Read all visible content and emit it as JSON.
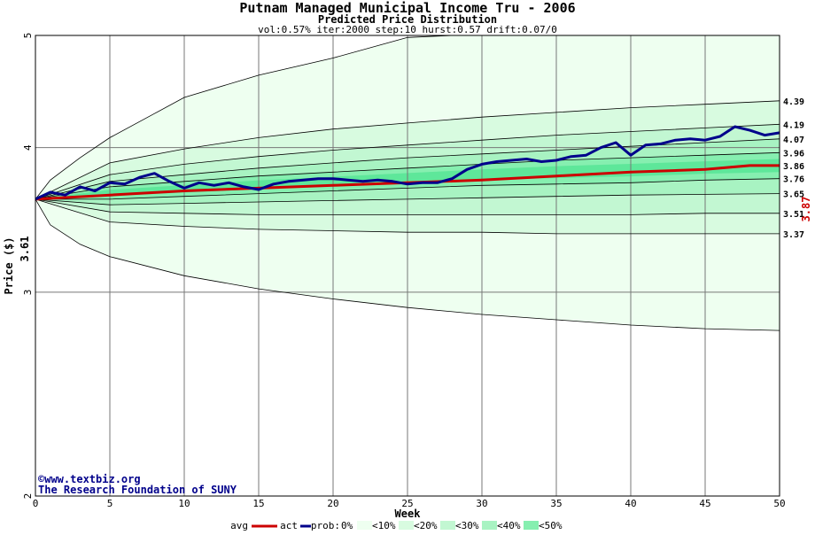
{
  "title": "Putnam Managed Municipal Income Tru - 2006",
  "subtitle": "Predicted Price Distribution",
  "params": "vol:0.57% iter:2000 step:10 hurst:0.57 drift:0.07/0",
  "ylabel": "Price ($)",
  "xlabel": "Week",
  "start_price_label": "3.61",
  "end_price_label": "3.87",
  "copyright_line1": "©www.textbiz.org",
  "copyright_line2": "The Research Foundation of SUNY",
  "colors": {
    "avg": "#cc0000",
    "actual": "#00008b",
    "band_outer": "#eefff0",
    "band_10": "#d8fbe0",
    "band_20": "#c2f7d2",
    "band_30": "#a8f3c2",
    "band_40": "#86efb0",
    "band_50": "#5ee79a"
  },
  "legend": {
    "avg": "avg",
    "act": "act",
    "prob": "prob:",
    "p0": "0%",
    "p10": "<10%",
    "p20": "<20%",
    "p30": "<30%",
    "p40": "<40%",
    "p50": "<50%"
  },
  "chart_data": {
    "type": "line",
    "yscale": "log",
    "xlim": [
      0,
      50
    ],
    "ylim": [
      2,
      5
    ],
    "x_ticks": [
      0,
      5,
      10,
      15,
      20,
      25,
      30,
      35,
      40,
      45,
      50
    ],
    "y_ticks": [
      2,
      3,
      4,
      5
    ],
    "right_labels": [
      "4.39",
      "4.19",
      "4.07",
      "3.96",
      "3.86",
      "3.76",
      "3.65",
      "3.51",
      "3.37"
    ],
    "bands": [
      {
        "name": "outer",
        "upper": [
          [
            0,
            3.61
          ],
          [
            1,
            3.75
          ],
          [
            3,
            3.92
          ],
          [
            5,
            4.08
          ],
          [
            8,
            4.28
          ],
          [
            10,
            4.42
          ],
          [
            15,
            4.62
          ],
          [
            20,
            4.78
          ],
          [
            25,
            4.98
          ],
          [
            28,
            5.05
          ]
        ],
        "lower": [
          [
            0,
            3.61
          ],
          [
            1,
            3.43
          ],
          [
            3,
            3.3
          ],
          [
            5,
            3.22
          ],
          [
            10,
            3.1
          ],
          [
            15,
            3.02
          ],
          [
            20,
            2.96
          ],
          [
            25,
            2.91
          ],
          [
            30,
            2.87
          ],
          [
            35,
            2.84
          ],
          [
            40,
            2.81
          ],
          [
            45,
            2.79
          ],
          [
            50,
            2.78
          ]
        ]
      },
      {
        "name": "p10",
        "upper": [
          [
            0,
            3.61
          ],
          [
            5,
            3.88
          ],
          [
            10,
            3.99
          ],
          [
            15,
            4.08
          ],
          [
            20,
            4.15
          ],
          [
            25,
            4.2
          ],
          [
            30,
            4.25
          ],
          [
            35,
            4.29
          ],
          [
            40,
            4.33
          ],
          [
            45,
            4.36
          ],
          [
            50,
            4.39
          ]
        ],
        "lower": [
          [
            0,
            3.61
          ],
          [
            5,
            3.45
          ],
          [
            10,
            3.42
          ],
          [
            15,
            3.4
          ],
          [
            20,
            3.39
          ],
          [
            25,
            3.38
          ],
          [
            30,
            3.38
          ],
          [
            35,
            3.37
          ],
          [
            40,
            3.37
          ],
          [
            45,
            3.37
          ],
          [
            50,
            3.37
          ]
        ]
      },
      {
        "name": "p20",
        "upper": [
          [
            0,
            3.61
          ],
          [
            5,
            3.79
          ],
          [
            10,
            3.87
          ],
          [
            15,
            3.93
          ],
          [
            20,
            3.98
          ],
          [
            25,
            4.02
          ],
          [
            30,
            4.06
          ],
          [
            35,
            4.1
          ],
          [
            40,
            4.13
          ],
          [
            45,
            4.16
          ],
          [
            50,
            4.19
          ]
        ],
        "lower": [
          [
            0,
            3.61
          ],
          [
            5,
            3.52
          ],
          [
            10,
            3.51
          ],
          [
            15,
            3.5
          ],
          [
            20,
            3.5
          ],
          [
            25,
            3.5
          ],
          [
            30,
            3.5
          ],
          [
            35,
            3.5
          ],
          [
            40,
            3.5
          ],
          [
            45,
            3.51
          ],
          [
            50,
            3.51
          ]
        ]
      },
      {
        "name": "p30",
        "upper": [
          [
            0,
            3.61
          ],
          [
            5,
            3.74
          ],
          [
            10,
            3.79
          ],
          [
            15,
            3.84
          ],
          [
            20,
            3.88
          ],
          [
            25,
            3.92
          ],
          [
            30,
            3.95
          ],
          [
            35,
            3.98
          ],
          [
            40,
            4.01
          ],
          [
            45,
            4.04
          ],
          [
            50,
            4.07
          ]
        ],
        "lower": [
          [
            0,
            3.61
          ],
          [
            5,
            3.57
          ],
          [
            10,
            3.58
          ],
          [
            15,
            3.59
          ],
          [
            20,
            3.6
          ],
          [
            25,
            3.61
          ],
          [
            30,
            3.62
          ],
          [
            35,
            3.63
          ],
          [
            40,
            3.64
          ],
          [
            45,
            3.645
          ],
          [
            50,
            3.65
          ]
        ]
      },
      {
        "name": "p40",
        "upper": [
          [
            0,
            3.61
          ],
          [
            5,
            3.7
          ],
          [
            10,
            3.74
          ],
          [
            15,
            3.78
          ],
          [
            20,
            3.81
          ],
          [
            25,
            3.84
          ],
          [
            30,
            3.87
          ],
          [
            35,
            3.9
          ],
          [
            40,
            3.92
          ],
          [
            45,
            3.94
          ],
          [
            50,
            3.96
          ]
        ],
        "lower": [
          [
            0,
            3.61
          ],
          [
            5,
            3.61
          ],
          [
            10,
            3.63
          ],
          [
            15,
            3.65
          ],
          [
            20,
            3.67
          ],
          [
            25,
            3.69
          ],
          [
            30,
            3.71
          ],
          [
            35,
            3.72
          ],
          [
            40,
            3.73
          ],
          [
            45,
            3.75
          ],
          [
            50,
            3.76
          ]
        ]
      }
    ],
    "series": [
      {
        "name": "avg",
        "points": [
          [
            0,
            3.61
          ],
          [
            5,
            3.64
          ],
          [
            10,
            3.67
          ],
          [
            15,
            3.69
          ],
          [
            20,
            3.71
          ],
          [
            25,
            3.73
          ],
          [
            30,
            3.75
          ],
          [
            35,
            3.78
          ],
          [
            40,
            3.81
          ],
          [
            45,
            3.83
          ],
          [
            48,
            3.86
          ],
          [
            50,
            3.86
          ]
        ]
      },
      {
        "name": "act",
        "points": [
          [
            0,
            3.61
          ],
          [
            1,
            3.66
          ],
          [
            2,
            3.64
          ],
          [
            3,
            3.7
          ],
          [
            4,
            3.67
          ],
          [
            5,
            3.73
          ],
          [
            6,
            3.72
          ],
          [
            7,
            3.77
          ],
          [
            8,
            3.8
          ],
          [
            9,
            3.74
          ],
          [
            10,
            3.69
          ],
          [
            11,
            3.73
          ],
          [
            12,
            3.71
          ],
          [
            13,
            3.73
          ],
          [
            14,
            3.7
          ],
          [
            15,
            3.68
          ],
          [
            16,
            3.72
          ],
          [
            17,
            3.74
          ],
          [
            18,
            3.75
          ],
          [
            19,
            3.76
          ],
          [
            20,
            3.76
          ],
          [
            21,
            3.75
          ],
          [
            22,
            3.74
          ],
          [
            23,
            3.75
          ],
          [
            24,
            3.74
          ],
          [
            25,
            3.72
          ],
          [
            26,
            3.73
          ],
          [
            27,
            3.73
          ],
          [
            28,
            3.76
          ],
          [
            29,
            3.83
          ],
          [
            30,
            3.87
          ],
          [
            31,
            3.89
          ],
          [
            32,
            3.9
          ],
          [
            33,
            3.91
          ],
          [
            34,
            3.89
          ],
          [
            35,
            3.9
          ],
          [
            36,
            3.93
          ],
          [
            37,
            3.94
          ],
          [
            38,
            4.0
          ],
          [
            39,
            4.04
          ],
          [
            40,
            3.94
          ],
          [
            41,
            4.02
          ],
          [
            42,
            4.03
          ],
          [
            43,
            4.06
          ],
          [
            44,
            4.07
          ],
          [
            45,
            4.06
          ],
          [
            46,
            4.09
          ],
          [
            47,
            4.17
          ],
          [
            48,
            4.14
          ],
          [
            49,
            4.1
          ],
          [
            50,
            4.12
          ]
        ]
      }
    ]
  }
}
